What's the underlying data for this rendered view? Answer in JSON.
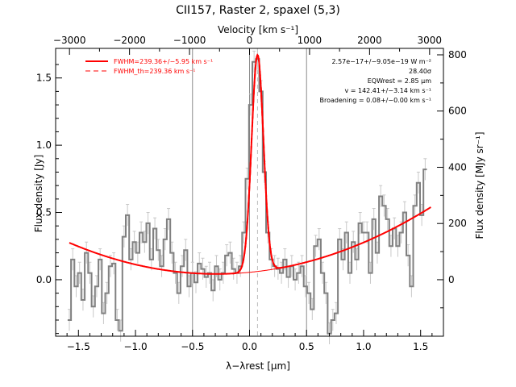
{
  "chart_data": {
    "type": "line",
    "title": "CII157, Raster 2, spaxel (5,3)",
    "xlabel": "λ−λrest [μm]",
    "ylabel_left": "Flux density [Jy]",
    "ylabel_right": "Flux density [MJy sr⁻¹]",
    "xlabel_top": "Velocity [km s⁻¹]",
    "xlim": [
      -1.7,
      1.7
    ],
    "ylim": [
      -0.42,
      1.72
    ],
    "x_ticks": [
      -1.5,
      -1.0,
      -0.5,
      0.0,
      0.5,
      1.0,
      1.5
    ],
    "x_tick_labels": [
      "−1.5",
      "−1.0",
      "−0.5",
      "0.0",
      "0.5",
      "1.0",
      "1.5"
    ],
    "y_ticks": [
      0.0,
      0.5,
      1.0,
      1.5
    ],
    "y_tick_labels": [
      "0.0",
      "0.5",
      "1.0",
      "1.5"
    ],
    "top_ticks_velocity": [
      -3000,
      -2000,
      -1000,
      0,
      1000,
      2000,
      3000
    ],
    "top_tick_labels": [
      "−3000",
      "−2000",
      "−1000",
      "0",
      "1000",
      "2000",
      "3000"
    ],
    "right_ticks_mjy": [
      0,
      200,
      400,
      600,
      800
    ],
    "right_tick_labels": [
      "0",
      "200",
      "400",
      "600",
      "800"
    ],
    "jy_per_mjysr": 0.00209,
    "vertical_lines": [
      -0.5,
      0.0,
      0.5
    ],
    "line_center": 0.07,
    "legend": [
      {
        "label": "FWHM=239.36+/−5.95 km s⁻¹",
        "style": "solid",
        "color": "#ff0000"
      },
      {
        "label": "FWHM_th=239.36 km s⁻¹",
        "style": "dashed",
        "color": "#ff0000"
      }
    ],
    "annotations": [
      "2.57e−17+/−9.05e−19 W m⁻²",
      "28.40σ",
      "EQWrest = 2.85 μm",
      "v = 142.41+/−3.14 km s⁻¹",
      "Broadening = 0.08+/−0.00 km s⁻¹"
    ],
    "series": [
      {
        "name": "data",
        "color": "#808080",
        "x": [
          -1.58,
          -1.55,
          -1.52,
          -1.49,
          -1.46,
          -1.43,
          -1.4,
          -1.37,
          -1.34,
          -1.31,
          -1.28,
          -1.25,
          -1.22,
          -1.19,
          -1.16,
          -1.13,
          -1.1,
          -1.07,
          -1.04,
          -1.01,
          -0.98,
          -0.95,
          -0.92,
          -0.89,
          -0.86,
          -0.83,
          -0.8,
          -0.77,
          -0.74,
          -0.71,
          -0.68,
          -0.65,
          -0.62,
          -0.59,
          -0.56,
          -0.53,
          -0.5,
          -0.47,
          -0.44,
          -0.41,
          -0.38,
          -0.35,
          -0.32,
          -0.29,
          -0.26,
          -0.23,
          -0.2,
          -0.17,
          -0.14,
          -0.11,
          -0.08,
          -0.05,
          -0.02,
          0.01,
          0.04,
          0.07,
          0.1,
          0.13,
          0.16,
          0.19,
          0.22,
          0.25,
          0.28,
          0.31,
          0.34,
          0.37,
          0.4,
          0.43,
          0.46,
          0.49,
          0.52,
          0.55,
          0.58,
          0.61,
          0.64,
          0.67,
          0.7,
          0.73,
          0.76,
          0.79,
          0.82,
          0.85,
          0.88,
          0.91,
          0.94,
          0.97,
          1.0,
          1.03,
          1.06,
          1.09,
          1.12,
          1.15,
          1.18,
          1.21,
          1.24,
          1.27,
          1.3,
          1.33,
          1.36,
          1.39,
          1.42,
          1.45,
          1.48,
          1.51,
          1.54
        ],
        "y": [
          -0.3,
          0.15,
          -0.05,
          0.05,
          -0.15,
          0.2,
          0.05,
          -0.2,
          -0.05,
          0.15,
          -0.25,
          -0.1,
          0.1,
          0.12,
          -0.3,
          -0.38,
          0.32,
          0.48,
          0.15,
          0.28,
          0.2,
          0.35,
          0.28,
          0.42,
          0.15,
          0.38,
          0.22,
          0.1,
          0.3,
          0.45,
          0.2,
          0.05,
          -0.1,
          0.1,
          0.22,
          -0.05,
          0.05,
          -0.02,
          0.12,
          0.08,
          0.02,
          0.05,
          -0.08,
          0.1,
          0.0,
          0.05,
          0.18,
          0.2,
          0.08,
          0.05,
          0.1,
          0.35,
          0.75,
          1.3,
          1.62,
          1.64,
          1.4,
          0.8,
          0.35,
          0.15,
          0.1,
          0.08,
          0.05,
          0.15,
          0.02,
          0.1,
          0.0,
          0.05,
          0.1,
          -0.05,
          -0.1,
          -0.22,
          0.25,
          0.3,
          0.05,
          -0.1,
          -0.4,
          -0.3,
          -0.25,
          0.3,
          0.15,
          0.35,
          0.05,
          0.28,
          0.15,
          0.42,
          0.35,
          0.35,
          0.05,
          0.45,
          0.2,
          0.62,
          0.55,
          0.45,
          0.25,
          0.38,
          0.25,
          0.35,
          0.5,
          0.18,
          -0.05,
          0.55,
          0.72,
          0.48,
          0.82
        ],
        "err": 0.08
      },
      {
        "name": "fit_total",
        "color": "#ff0000",
        "type": "model",
        "baseline_quadratic": [
          0.055,
          0.082,
          0.14
        ],
        "gaussian": {
          "amplitude": 1.61,
          "center": 0.07,
          "sigma": 0.052
        }
      }
    ]
  }
}
